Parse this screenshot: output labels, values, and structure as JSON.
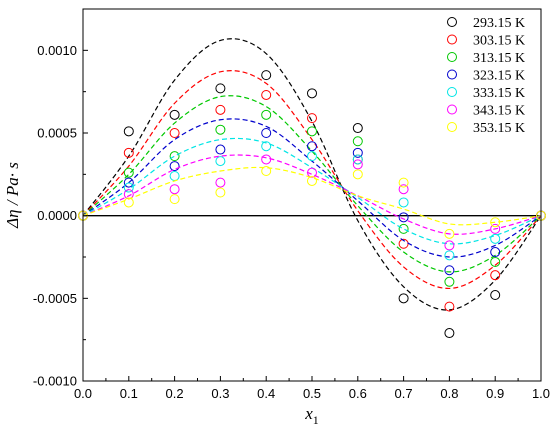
{
  "chart_data": {
    "type": "scatter",
    "xlabel": "x",
    "xlabel_sub": "1",
    "ylabel": "Δη / Pa· s",
    "xlim": [
      0.0,
      1.0
    ],
    "ylim": [
      -0.001,
      0.00125
    ],
    "xticks": [
      0.0,
      0.1,
      0.2,
      0.3,
      0.4,
      0.5,
      0.6,
      0.7,
      0.8,
      0.9,
      1.0
    ],
    "xtick_labels": [
      "0.0",
      "0.1",
      "0.2",
      "0.3",
      "0.4",
      "0.5",
      "0.6",
      "0.7",
      "0.8",
      "0.9",
      "1.0"
    ],
    "yticks": [
      -0.001,
      -0.0005,
      0.0,
      0.0005,
      0.001
    ],
    "ytick_labels": [
      "-0.0010",
      "-0.0005",
      "0.0000",
      "0.0005",
      "0.0010"
    ],
    "x": [
      0.0,
      0.1,
      0.2,
      0.3,
      0.4,
      0.5,
      0.6,
      0.7,
      0.8,
      0.9,
      1.0
    ],
    "legend_position": "top-right",
    "series": [
      {
        "name": "293.15 K",
        "color": "#000000",
        "values": [
          0.0,
          0.00051,
          0.00061,
          0.00077,
          0.00085,
          0.00074,
          0.00053,
          -0.0005,
          -0.00071,
          -0.00048,
          0.0
        ],
        "fit": [
          0.0,
          0.00036,
          0.00082,
          0.00106,
          0.00098,
          0.00057,
          -3e-05,
          -0.00043,
          -0.00057,
          -0.00039,
          0.0
        ]
      },
      {
        "name": "303.15 K",
        "color": "#ff0000",
        "values": [
          0.0,
          0.00038,
          0.0005,
          0.00064,
          0.00073,
          0.00059,
          0.00034,
          -0.00017,
          -0.00055,
          -0.00036,
          0.0
        ],
        "fit": [
          0.0,
          0.0003,
          0.00068,
          0.00087,
          0.0008,
          0.00046,
          3e-05,
          -0.00031,
          -0.00044,
          -0.0003,
          0.0
        ]
      },
      {
        "name": "313.15 K",
        "color": "#00c800",
        "values": [
          0.0,
          0.00026,
          0.00036,
          0.00052,
          0.00061,
          0.00051,
          0.00045,
          -8e-05,
          -0.0004,
          -0.00028,
          0.0
        ],
        "fit": [
          0.0,
          0.00025,
          0.00056,
          0.00072,
          0.00066,
          0.00039,
          6e-05,
          -0.00022,
          -0.00034,
          -0.00024,
          0.0
        ]
      },
      {
        "name": "323.15 K",
        "color": "#0000cc",
        "values": [
          0.0,
          0.0002,
          0.0003,
          0.0004,
          0.0005,
          0.00042,
          0.00038,
          -1e-05,
          -0.00033,
          -0.00022,
          0.0
        ],
        "fit": [
          0.0,
          0.0002,
          0.00046,
          0.00058,
          0.00054,
          0.00033,
          9e-05,
          -0.00015,
          -0.00025,
          -0.00018,
          0.0
        ]
      },
      {
        "name": "333.15 K",
        "color": "#00e5e5",
        "values": [
          0.0,
          0.00017,
          0.00024,
          0.00033,
          0.00042,
          0.00036,
          0.00034,
          8e-05,
          -0.00024,
          -0.00014,
          0.0
        ],
        "fit": [
          0.0,
          0.00016,
          0.00036,
          0.00046,
          0.00044,
          0.00029,
          0.00011,
          -8e-05,
          -0.00017,
          -0.00012,
          0.0
        ]
      },
      {
        "name": "343.15 K",
        "color": "#ff00ff",
        "values": [
          0.0,
          0.00013,
          0.00016,
          0.0002,
          0.00034,
          0.00026,
          0.00031,
          0.00016,
          -0.00018,
          -8e-05,
          0.0
        ],
        "fit": [
          0.0,
          0.00012,
          0.00028,
          0.00036,
          0.00035,
          0.00025,
          0.00012,
          -2e-05,
          -0.00011,
          -8e-05,
          0.0
        ]
      },
      {
        "name": "353.15 K",
        "color": "#ffff00",
        "values": [
          0.0,
          8e-05,
          0.0001,
          0.00014,
          0.00027,
          0.00021,
          0.00025,
          0.0002,
          -0.00011,
          -4e-05,
          0.0
        ],
        "fit": [
          0.0,
          0.0001,
          0.00021,
          0.00027,
          0.00029,
          0.00023,
          0.00012,
          4e-05,
          -5e-05,
          -4e-05,
          0.0
        ]
      }
    ]
  }
}
